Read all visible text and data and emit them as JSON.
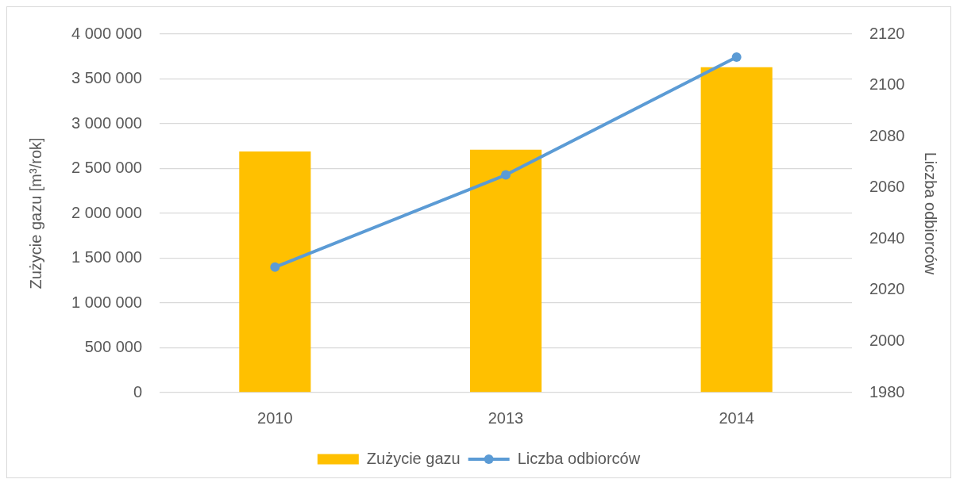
{
  "chart_data": {
    "type": "bar",
    "categories": [
      "2010",
      "2013",
      "2014"
    ],
    "series": [
      {
        "name": "Zużycie gazu",
        "color": "#ffc000",
        "values": [
          2690000,
          2710000,
          3630000
        ]
      },
      {
        "name": "Liczba odbiorców",
        "type": "line",
        "axis": "y2",
        "color": "#5b9bd5",
        "values": [
          2029,
          2065,
          2111
        ]
      }
    ],
    "ylabel": "Zużycie gazu [m³/rok]",
    "y2label": "Liczba odbiorców",
    "ylim": [
      0,
      4000000
    ],
    "yticks": [
      0,
      {
        "value": 500000,
        "label": "500 000"
      },
      {
        "value": 1000000,
        "label": "1 000 000"
      },
      {
        "value": 1500000,
        "label": "1 500 000"
      },
      {
        "value": 2000000,
        "label": "2 000 000"
      },
      {
        "value": 2500000,
        "label": "2 500 000"
      },
      {
        "value": 3000000,
        "label": "3 000 000"
      },
      {
        "value": 3500000,
        "label": "3 500 000"
      },
      {
        "value": 4000000,
        "label": "4 000 000"
      }
    ],
    "y2lim": [
      1980,
      2120
    ],
    "y2ticks": [
      1980,
      2000,
      2020,
      2040,
      2060,
      2080,
      2100,
      2120
    ],
    "grid": "y",
    "legend": "bottom",
    "marker": "circle"
  }
}
